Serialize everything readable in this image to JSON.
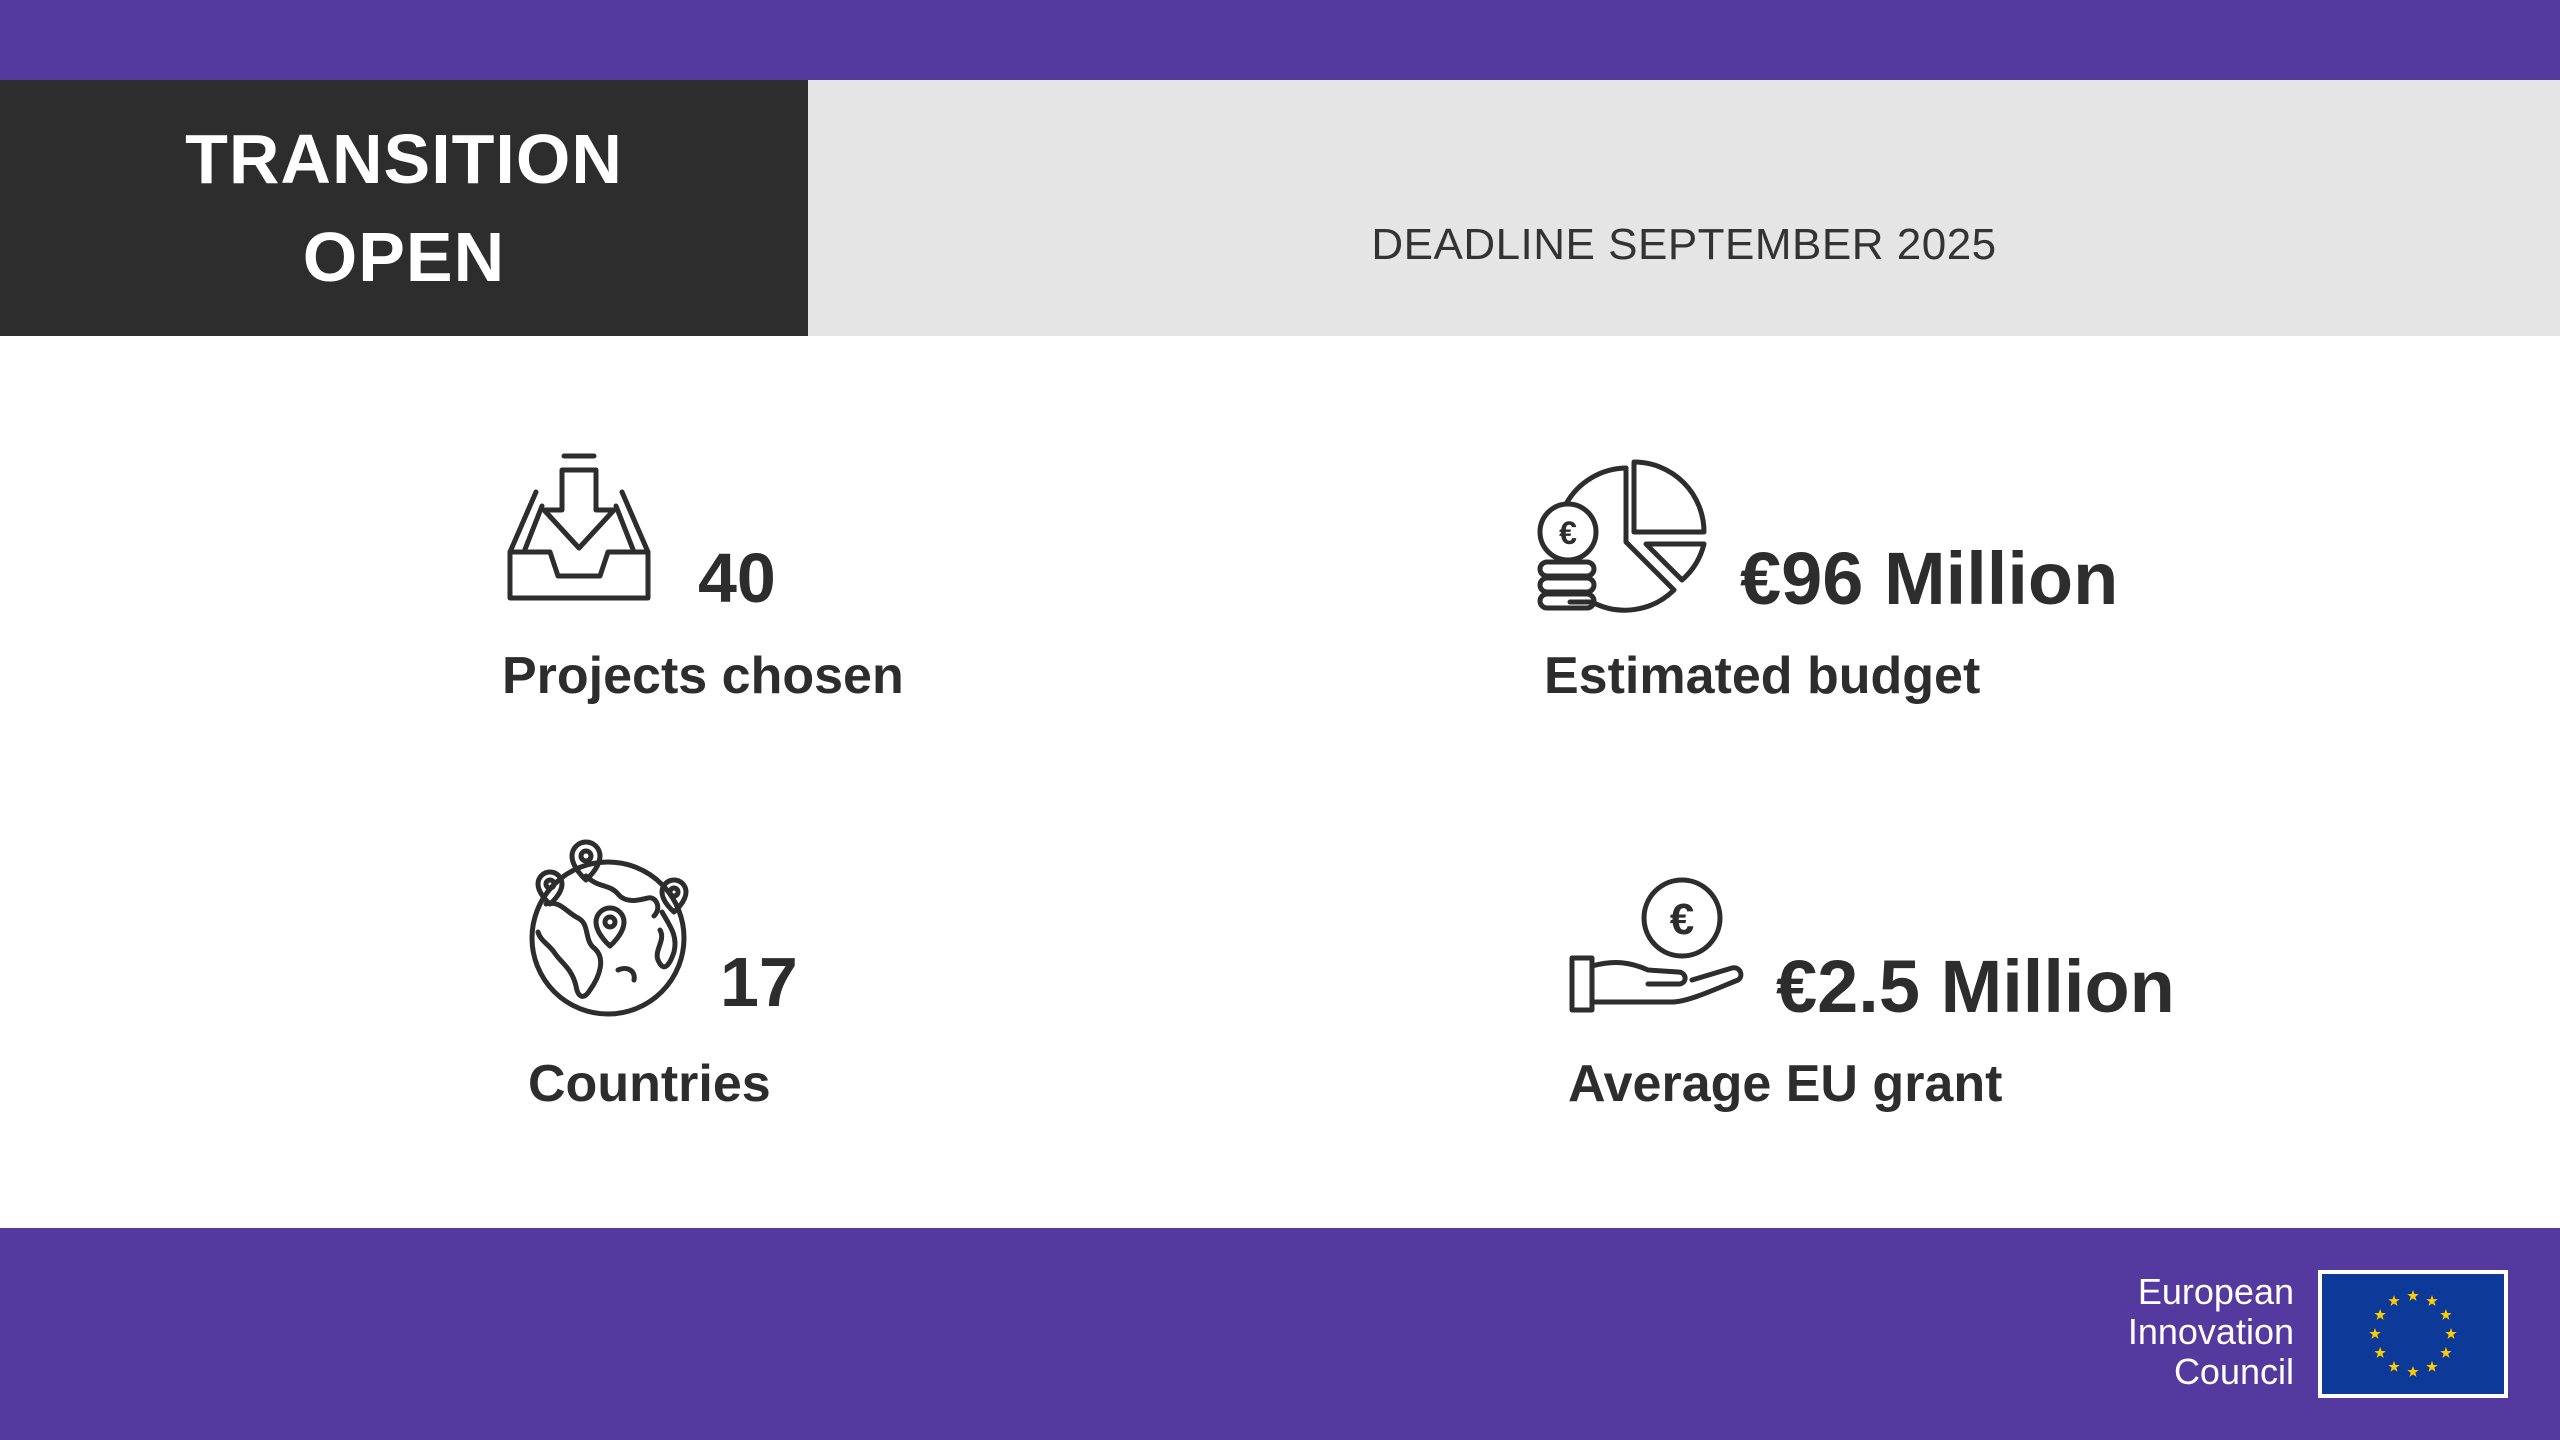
{
  "header": {
    "title_line1": "TRANSITION",
    "title_line2": "OPEN",
    "deadline": "DEADLINE SEPTEMBER 2025"
  },
  "stats": [
    {
      "value": "40",
      "label": "Projects chosen",
      "icon": "inbox-download-icon"
    },
    {
      "value": "€96 Million",
      "label": "Estimated budget",
      "icon": "coins-pie-chart-icon"
    },
    {
      "value": "17",
      "label": "Countries",
      "icon": "globe-pins-icon"
    },
    {
      "value": "€2.5 Million",
      "label": "Average EU grant",
      "icon": "hand-euro-coin-icon"
    }
  ],
  "footer": {
    "org_line1": "European",
    "org_line2": "Innovation",
    "org_line3": "Council",
    "flag_icon": "eu-flag-icon"
  },
  "colors": {
    "brand_purple": "#54399f",
    "dark": "#2d2d2d",
    "light_gray": "#e5e5e5",
    "eu_blue": "#0d3a99",
    "eu_gold": "#ffcc00"
  }
}
